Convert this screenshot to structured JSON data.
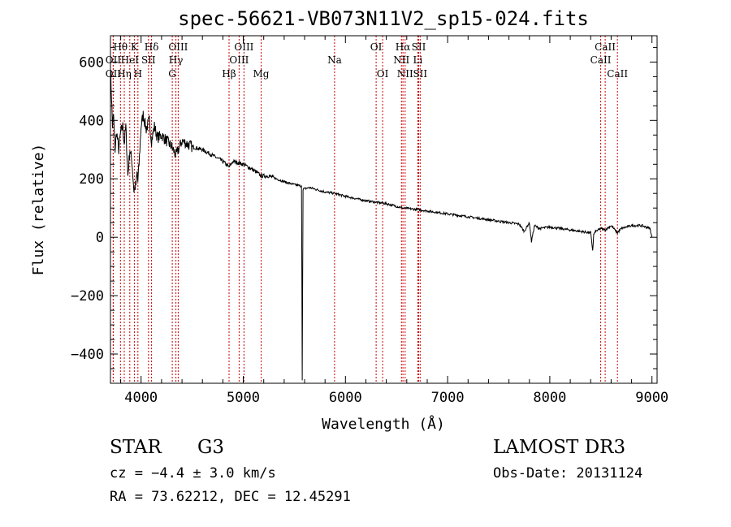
{
  "chart_data": {
    "type": "line",
    "title": "spec-56621-VB073N11V2_sp15-024.fits",
    "xlabel": "Wavelength (Å)",
    "ylabel": "Flux (relative)",
    "xlim": [
      3700,
      9050
    ],
    "ylim": [
      -500,
      690
    ],
    "xticks": [
      4000,
      5000,
      6000,
      7000,
      8000,
      9000
    ],
    "yticks": [
      -400,
      -200,
      0,
      200,
      400,
      600
    ],
    "grid": false,
    "series": [
      {
        "name": "spectrum",
        "x": [
          3700,
          3710,
          3720,
          3730,
          3745,
          3760,
          3780,
          3800,
          3820,
          3835,
          3850,
          3870,
          3890,
          3910,
          3930,
          3950,
          3960,
          3968,
          3980,
          4000,
          4020,
          4050,
          4080,
          4102,
          4130,
          4160,
          4200,
          4250,
          4300,
          4340,
          4400,
          4500,
          4600,
          4700,
          4800,
          4861,
          4900,
          5000,
          5100,
          5175,
          5250,
          5400,
          5500,
          5570,
          5577,
          5585,
          5650,
          5800,
          5893,
          6000,
          6200,
          6400,
          6563,
          6700,
          6900,
          7100,
          7300,
          7500,
          7700,
          7750,
          7800,
          7820,
          7850,
          7900,
          8000,
          8100,
          8200,
          8300,
          8400,
          8420,
          8430,
          8450,
          8500,
          8542,
          8600,
          8662,
          8700,
          8800,
          8900,
          8980,
          9000
        ],
        "y": [
          590,
          480,
          380,
          420,
          300,
          360,
          300,
          360,
          380,
          320,
          380,
          210,
          300,
          260,
          160,
          180,
          220,
          190,
          250,
          380,
          420,
          370,
          400,
          330,
          380,
          340,
          350,
          330,
          310,
          280,
          330,
          310,
          300,
          280,
          260,
          240,
          260,
          250,
          230,
          210,
          210,
          190,
          180,
          175,
          -490,
          165,
          170,
          155,
          150,
          140,
          125,
          115,
          100,
          95,
          85,
          75,
          65,
          55,
          45,
          20,
          50,
          -15,
          40,
          30,
          35,
          30,
          25,
          20,
          15,
          -45,
          10,
          20,
          30,
          25,
          40,
          15,
          30,
          40,
          40,
          30,
          0
        ]
      }
    ],
    "lines": [
      {
        "label": "Hθ",
        "wl": 3798,
        "row": 1
      },
      {
        "label": "OII",
        "wl": 3727,
        "row": 2
      },
      {
        "label": "OII",
        "wl": 3727,
        "row": 3
      },
      {
        "label": "K",
        "wl": 3934,
        "row": 1
      },
      {
        "label": "Hη",
        "wl": 3835,
        "row": 3
      },
      {
        "label": "HeI",
        "wl": 3889,
        "row": 2
      },
      {
        "label": "H",
        "wl": 3969,
        "row": 3
      },
      {
        "label": "Hδ",
        "wl": 4102,
        "row": 1
      },
      {
        "label": "SII",
        "wl": 4072,
        "row": 2
      },
      {
        "label": "OIII",
        "wl": 4363,
        "row": 1
      },
      {
        "label": "Hγ",
        "wl": 4341,
        "row": 2
      },
      {
        "label": "G",
        "wl": 4305,
        "row": 3
      },
      {
        "label": "Hβ",
        "wl": 4861,
        "row": 3
      },
      {
        "label": "OIII",
        "wl": 5007,
        "row": 1
      },
      {
        "label": "OIII",
        "wl": 4959,
        "row": 2
      },
      {
        "label": "Mg",
        "wl": 5175,
        "row": 3
      },
      {
        "label": "Na",
        "wl": 5893,
        "row": 2
      },
      {
        "label": "OI",
        "wl": 6300,
        "row": 1
      },
      {
        "label": "OI",
        "wl": 6364,
        "row": 3
      },
      {
        "label": "Hα",
        "wl": 6563,
        "row": 1
      },
      {
        "label": "NII",
        "wl": 6548,
        "row": 2
      },
      {
        "label": "NII",
        "wl": 6584,
        "row": 3
      },
      {
        "label": "SII",
        "wl": 6717,
        "row": 1
      },
      {
        "label": "Li",
        "wl": 6708,
        "row": 2
      },
      {
        "label": "SII",
        "wl": 6731,
        "row": 3
      },
      {
        "label": "CaII",
        "wl": 8542,
        "row": 1
      },
      {
        "label": "CaII",
        "wl": 8498,
        "row": 2
      },
      {
        "label": "CaII",
        "wl": 8662,
        "row": 3
      }
    ]
  },
  "info": {
    "object_type": "STAR",
    "object_class": "G3",
    "redshift_text": "cz = −4.4 ± 3.0 km/s",
    "coords_text": "RA =  73.62212, DEC =  12.45291",
    "survey": "LAMOST DR3",
    "obs_date": "Obs-Date: 20131124"
  },
  "colors": {
    "spectrum": "#000000",
    "line_marker": "#cc0000",
    "axis": "#000000"
  }
}
